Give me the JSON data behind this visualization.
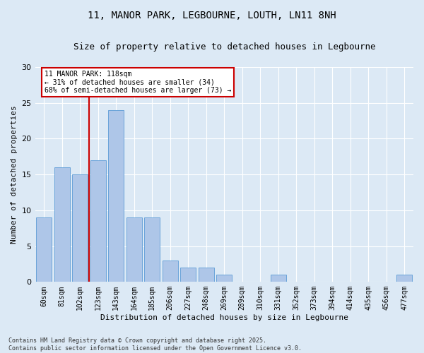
{
  "title_line1": "11, MANOR PARK, LEGBOURNE, LOUTH, LN11 8NH",
  "title_line2": "Size of property relative to detached houses in Legbourne",
  "xlabel": "Distribution of detached houses by size in Legbourne",
  "ylabel": "Number of detached properties",
  "categories": [
    "60sqm",
    "81sqm",
    "102sqm",
    "123sqm",
    "143sqm",
    "164sqm",
    "185sqm",
    "206sqm",
    "227sqm",
    "248sqm",
    "269sqm",
    "289sqm",
    "310sqm",
    "331sqm",
    "352sqm",
    "373sqm",
    "394sqm",
    "414sqm",
    "435sqm",
    "456sqm",
    "477sqm"
  ],
  "values": [
    9,
    16,
    15,
    17,
    24,
    9,
    9,
    3,
    2,
    2,
    1,
    0,
    0,
    1,
    0,
    0,
    0,
    0,
    0,
    0,
    1
  ],
  "bar_color": "#aec6e8",
  "bar_edge_color": "#5b9bd5",
  "bar_width": 0.85,
  "ylim": [
    0,
    30
  ],
  "yticks": [
    0,
    5,
    10,
    15,
    20,
    25,
    30
  ],
  "vline_x": 2.5,
  "vline_color": "#cc0000",
  "annotation_text": "11 MANOR PARK: 118sqm\n← 31% of detached houses are smaller (34)\n68% of semi-detached houses are larger (73) →",
  "bg_color": "#dce9f5",
  "plot_bg_color": "#dce9f5",
  "footer_line1": "Contains HM Land Registry data © Crown copyright and database right 2025.",
  "footer_line2": "Contains public sector information licensed under the Open Government Licence v3.0.",
  "grid_color": "#ffffff",
  "title_fontsize": 10,
  "subtitle_fontsize": 9,
  "tick_fontsize": 7,
  "ylabel_fontsize": 8,
  "xlabel_fontsize": 8,
  "ann_fontsize": 7,
  "footer_fontsize": 6
}
